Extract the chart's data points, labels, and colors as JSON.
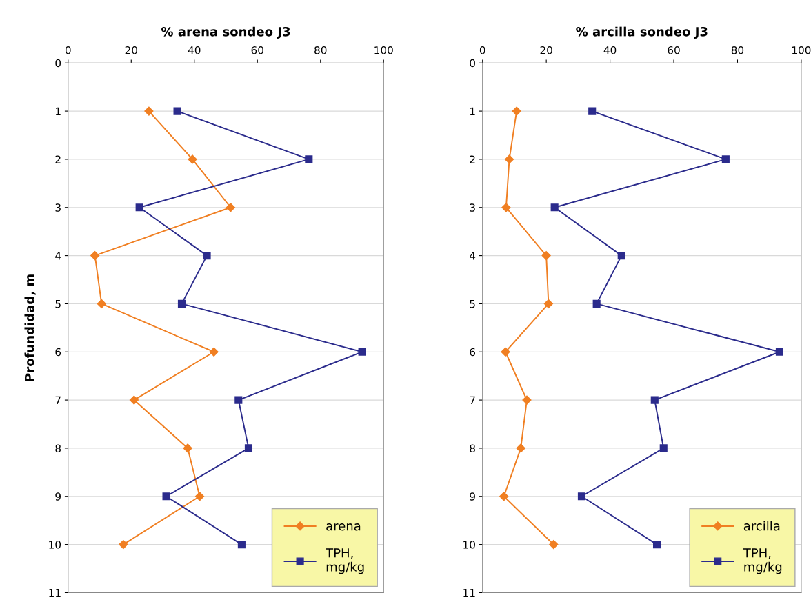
{
  "chart_data": [
    {
      "type": "line",
      "title": "% arena sondeo J3",
      "ylabel": "Profundidad, m",
      "xlim": [
        0,
        100
      ],
      "xticks": [
        0,
        20,
        40,
        60,
        80,
        100
      ],
      "ylim": [
        11,
        0
      ],
      "yticks": [
        0,
        1,
        2,
        3,
        4,
        5,
        6,
        7,
        8,
        9,
        10,
        11
      ],
      "grid": "y",
      "legend": "bottom right",
      "series": [
        {
          "name": "arena",
          "color": "#f07f22",
          "marker": "diamond",
          "x": [
            25.6,
            39.4,
            51.5,
            8.5,
            10.6,
            46.2,
            20.9,
            37.9,
            41.7,
            17.5
          ],
          "values": [
            1,
            2,
            3,
            4,
            5,
            6,
            7,
            8,
            9,
            10
          ]
        },
        {
          "name": "TPH,\nmg/kg",
          "color": "#2b2b8c",
          "marker": "square",
          "x": [
            34.6,
            76.3,
            22.6,
            44,
            36,
            93.2,
            54,
            57.2,
            31.1,
            55
          ],
          "values": [
            1,
            2,
            3,
            4,
            5,
            6,
            7,
            8,
            9,
            10
          ]
        }
      ]
    },
    {
      "type": "line",
      "title": "% arcilla sondeo J3",
      "xlim": [
        0,
        100
      ],
      "xticks": [
        0,
        20,
        40,
        60,
        80,
        100
      ],
      "ylim": [
        11,
        0
      ],
      "yticks": [
        0,
        1,
        2,
        3,
        4,
        5,
        6,
        7,
        8,
        9,
        10,
        11
      ],
      "grid": "y",
      "legend": "bottom right",
      "series": [
        {
          "name": "arcilla",
          "color": "#f07f22",
          "marker": "diamond",
          "x": [
            10.7,
            8.4,
            7.4,
            20,
            20.7,
            7.2,
            13.9,
            12,
            6.7,
            22.3
          ],
          "values": [
            1,
            2,
            3,
            4,
            5,
            6,
            7,
            8,
            9,
            10
          ]
        },
        {
          "name": "TPH,\nmg/kg",
          "color": "#2b2b8c",
          "marker": "square",
          "x": [
            34.4,
            76.3,
            22.6,
            43.6,
            35.8,
            93.2,
            54,
            56.8,
            31.1,
            54.7
          ],
          "values": [
            1,
            2,
            3,
            4,
            5,
            6,
            7,
            8,
            9,
            10
          ]
        }
      ]
    }
  ]
}
